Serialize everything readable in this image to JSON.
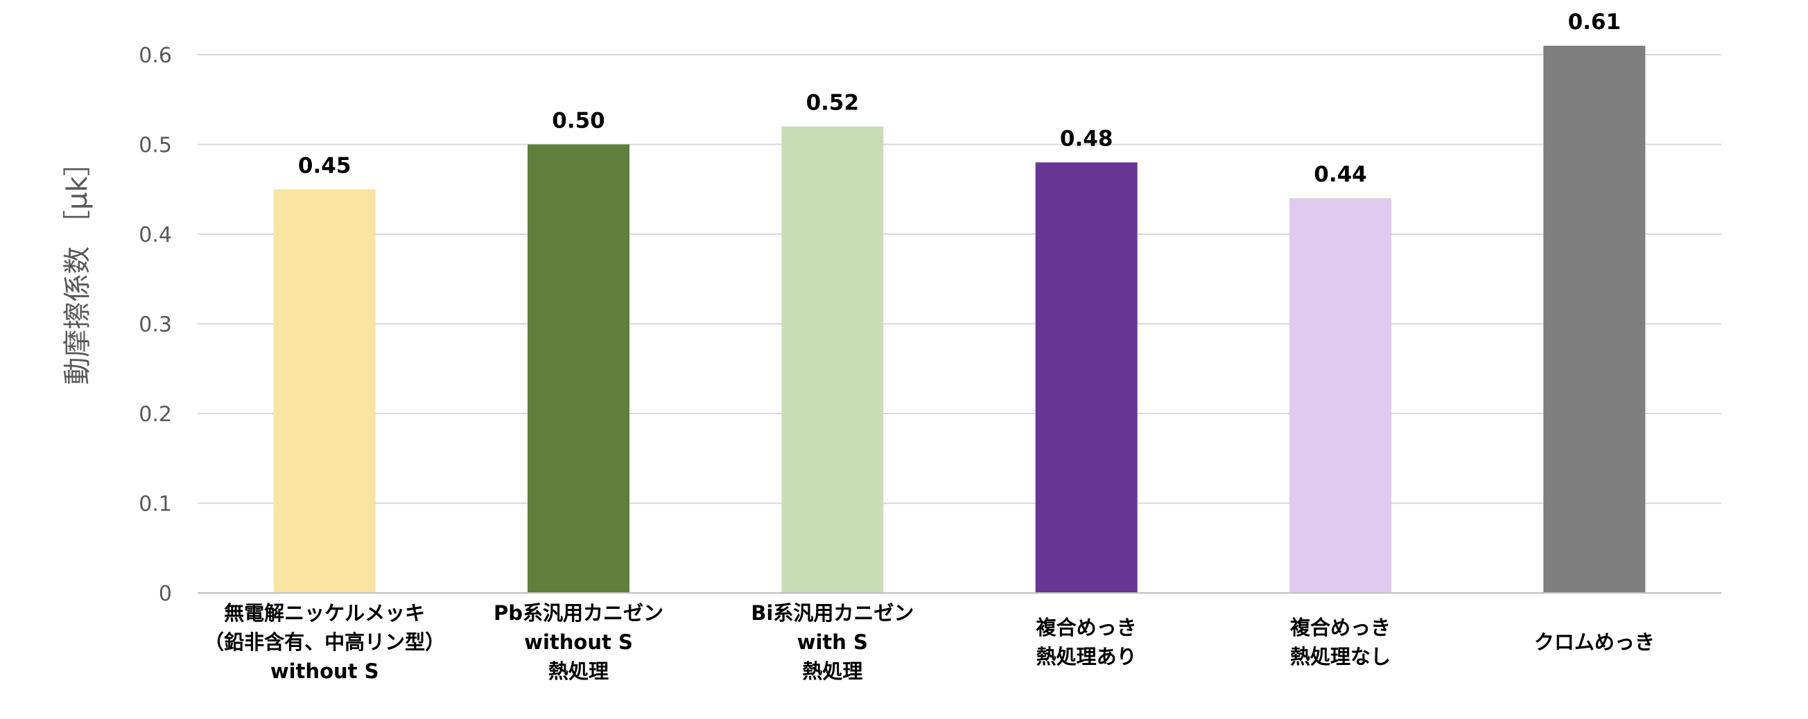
{
  "chart_data": {
    "type": "bar",
    "title": "",
    "xlabel": "",
    "ylabel": "動摩擦係数 ［μk］",
    "ylim": [
      0,
      0.6
    ],
    "yticks": [
      "0",
      "0.1",
      "0.2",
      "0.3",
      "0.4",
      "0.5",
      "0.6"
    ],
    "grid": true,
    "categories": [
      [
        "無電解ニッケルメッキ",
        "（鉛非含有、中高リン型）",
        "without S"
      ],
      [
        "Pb系汎用カニゼン",
        "without S",
        "熱処理"
      ],
      [
        "Bi系汎用カニゼン",
        "with S",
        "熱処理"
      ],
      [
        "複合めっき",
        "熱処理あり"
      ],
      [
        "複合めっき",
        "熱処理なし"
      ],
      [
        "クロムめっき"
      ]
    ],
    "values": [
      0.45,
      0.5,
      0.52,
      0.48,
      0.44,
      0.61
    ],
    "value_labels": [
      "0.45",
      "0.50",
      "0.52",
      "0.48",
      "0.44",
      "0.61"
    ],
    "colors": [
      "#f9e5a1",
      "#5e803c",
      "#c9deb6",
      "#673594",
      "#decbef",
      "#7f7f7f"
    ]
  }
}
